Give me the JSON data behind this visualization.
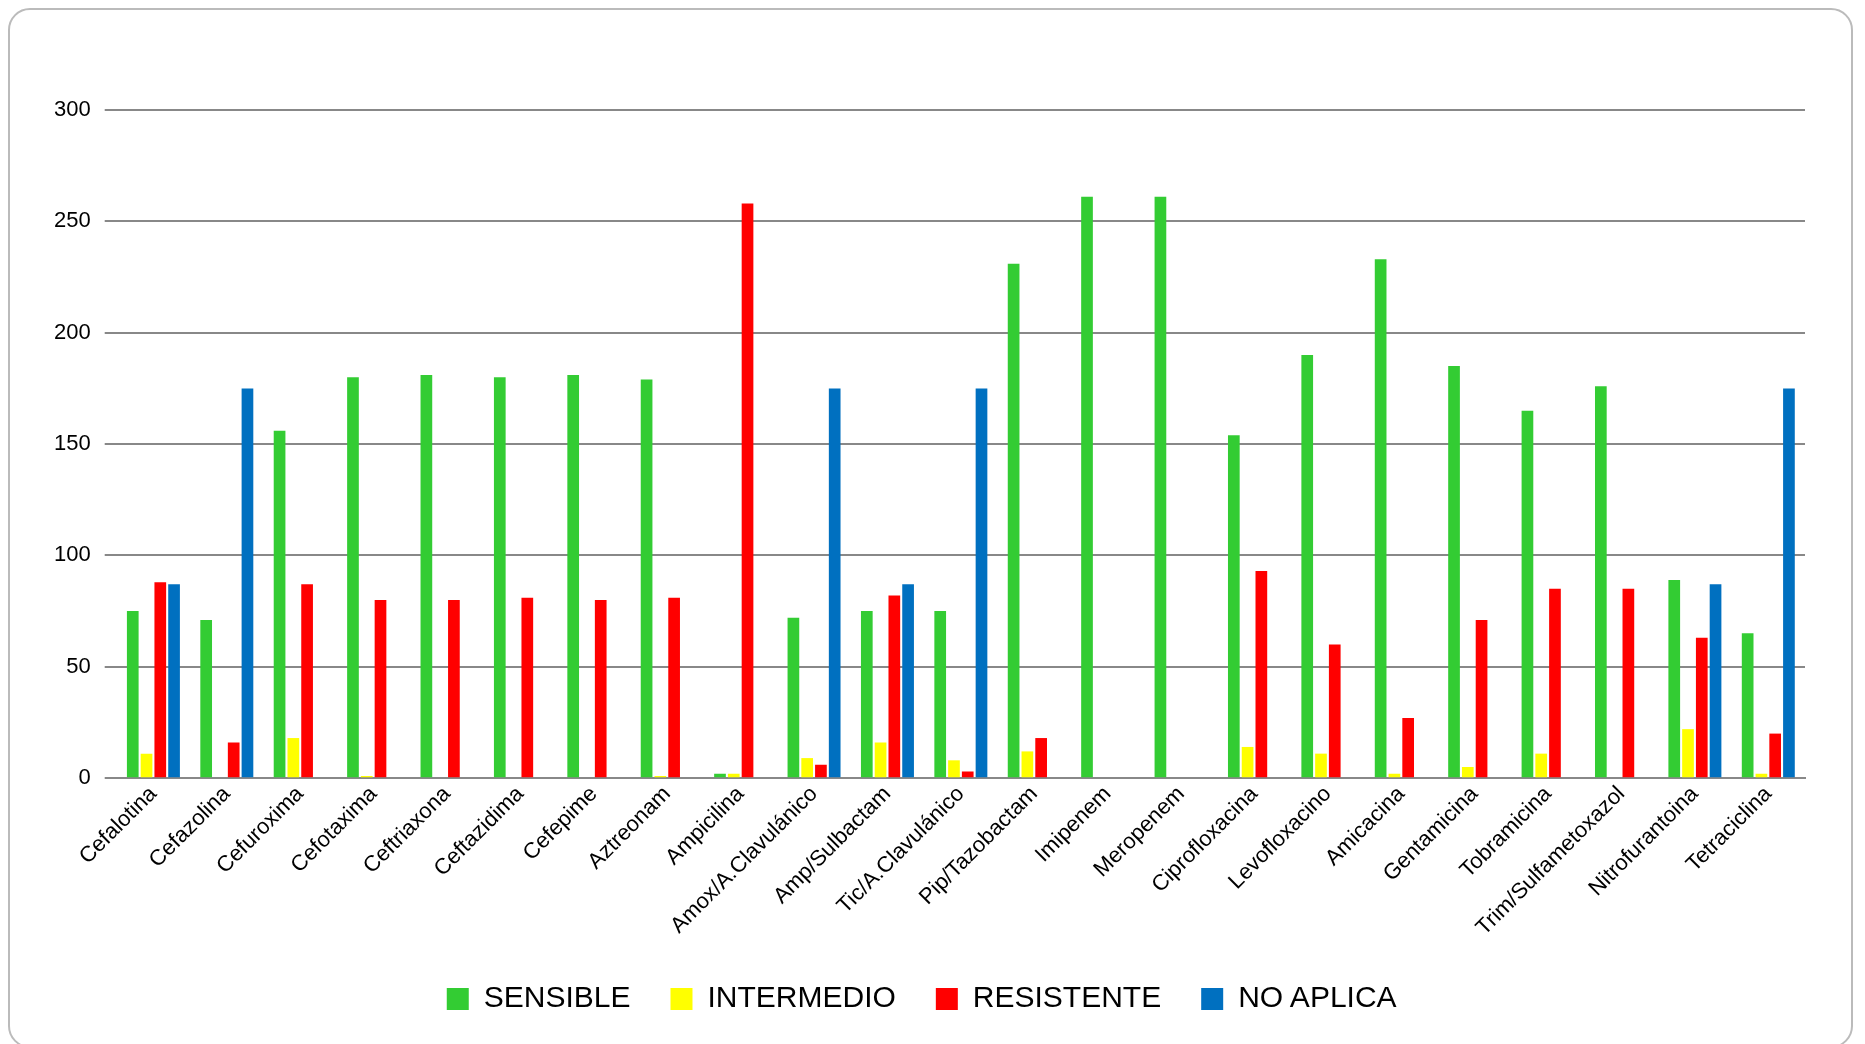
{
  "chart_data": {
    "type": "bar",
    "categories": [
      "Cefalotina",
      "Cefazolina",
      "Cefuroxima",
      "Cefotaxima",
      "Ceftriaxona",
      "Ceftazidima",
      "Cefepime",
      "Aztreonam",
      "Ampicilina",
      "Amox/A.Clavulánico",
      "Amp/Sulbactam",
      "Tic/A.Clavulánico",
      "Pip/Tazobactam",
      "Imipenem",
      "Meropenem",
      "Ciprofloxacina",
      "Levofloxacino",
      "Amicacina",
      "Gentamicina",
      "Tobramicina",
      "Trim/Sulfametoxazol",
      "Nitrofurantoina",
      "Tetraciclina"
    ],
    "series": [
      {
        "name": "SENSIBLE",
        "color": "#33cc33",
        "values": [
          75,
          71,
          156,
          180,
          181,
          180,
          181,
          179,
          2,
          72,
          75,
          75,
          231,
          261,
          261,
          154,
          190,
          233,
          185,
          165,
          176,
          89,
          65
        ]
      },
      {
        "name": "INTERMEDIO",
        "color": "#ffff00",
        "values": [
          11,
          0,
          18,
          1,
          0,
          0,
          0,
          1,
          2,
          9,
          16,
          8,
          12,
          0,
          0,
          14,
          11,
          2,
          5,
          11,
          0,
          22,
          2
        ]
      },
      {
        "name": "RESISTENTE",
        "color": "#ff0000",
        "values": [
          88,
          16,
          87,
          80,
          80,
          81,
          80,
          81,
          258,
          6,
          82,
          3,
          18,
          0,
          0,
          93,
          60,
          27,
          71,
          85,
          85,
          63,
          20
        ]
      },
      {
        "name": "NO APLICA",
        "color": "#0070c0",
        "values": [
          87,
          175,
          0,
          0,
          0,
          0,
          0,
          0,
          0,
          175,
          87,
          175,
          0,
          0,
          0,
          0,
          0,
          0,
          0,
          0,
          0,
          87,
          175
        ]
      }
    ],
    "ylim": [
      0,
      300
    ],
    "yticks": [
      0,
      50,
      100,
      150,
      200,
      250,
      300
    ],
    "grid": "y",
    "legend": "bottom"
  }
}
